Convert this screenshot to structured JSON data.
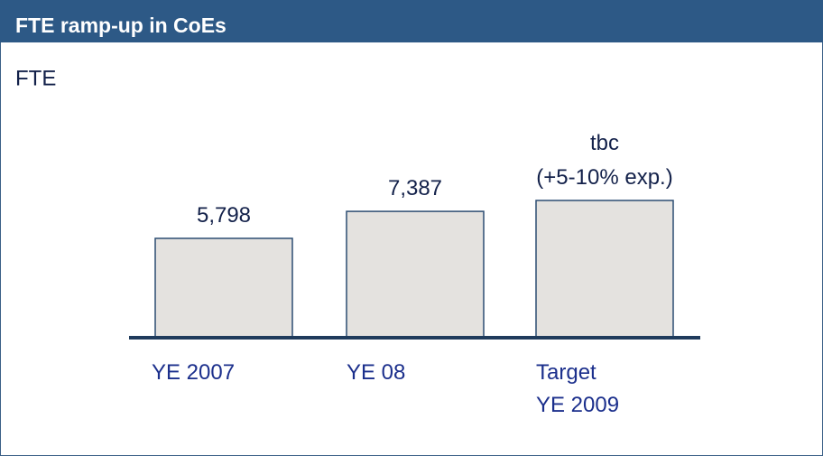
{
  "chart_data": {
    "type": "bar",
    "title": "FTE ramp-up in CoEs",
    "subtitle": "FTE",
    "categories": [
      "YE 2007",
      "YE 08",
      "Target\nYE 2009"
    ],
    "values": [
      5798,
      7387,
      8030
    ],
    "value_labels": [
      "5,798",
      "7,387",
      "tbc\n(+5-10% exp.)"
    ],
    "color": "#e4e2df"
  }
}
